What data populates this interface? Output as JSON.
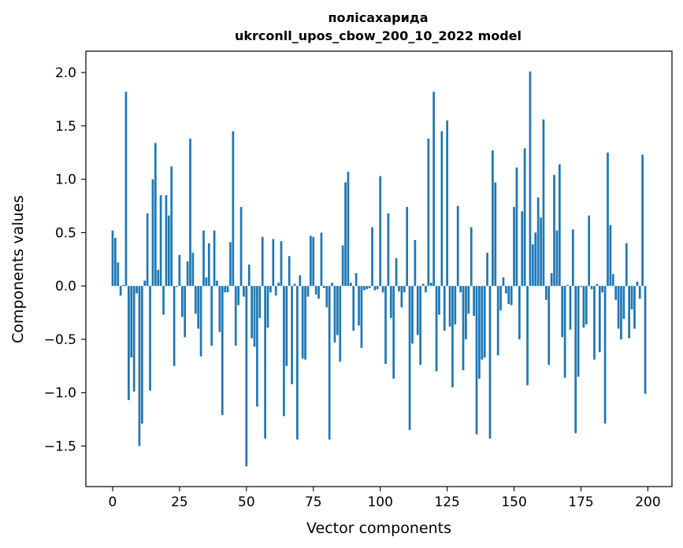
{
  "chart_data": {
    "type": "bar",
    "title": "полісахарида",
    "subtitle": "ukrconll_upos_cbow_200_10_2022 model",
    "xlabel": "Vector components",
    "ylabel": "Components values",
    "xlim": [
      -10,
      209
    ],
    "ylim": [
      -1.88,
      2.2
    ],
    "xticks": [
      0,
      25,
      50,
      75,
      100,
      125,
      150,
      175,
      200
    ],
    "yticks": [
      -1.5,
      -1.0,
      -0.5,
      0.0,
      0.5,
      1.0,
      1.5,
      2.0
    ],
    "ytick_labels": [
      "−1.5",
      "−1.0",
      "−0.5",
      "0.0",
      "0.5",
      "1.0",
      "1.5",
      "2.0"
    ],
    "grid": false,
    "bar_color": "#1f77b4",
    "x": [
      0,
      1,
      2,
      3,
      4,
      5,
      6,
      7,
      8,
      9,
      10,
      11,
      12,
      13,
      14,
      15,
      16,
      17,
      18,
      19,
      20,
      21,
      22,
      23,
      24,
      25,
      26,
      27,
      28,
      29,
      30,
      31,
      32,
      33,
      34,
      35,
      36,
      37,
      38,
      39,
      40,
      41,
      42,
      43,
      44,
      45,
      46,
      47,
      48,
      49,
      50,
      51,
      52,
      53,
      54,
      55,
      56,
      57,
      58,
      59,
      60,
      61,
      62,
      63,
      64,
      65,
      66,
      67,
      68,
      69,
      70,
      71,
      72,
      73,
      74,
      75,
      76,
      77,
      78,
      79,
      80,
      81,
      82,
      83,
      84,
      85,
      86,
      87,
      88,
      89,
      90,
      91,
      92,
      93,
      94,
      95,
      96,
      97,
      98,
      99,
      100,
      101,
      102,
      103,
      104,
      105,
      106,
      107,
      108,
      109,
      110,
      111,
      112,
      113,
      114,
      115,
      116,
      117,
      118,
      119,
      120,
      121,
      122,
      123,
      124,
      125,
      126,
      127,
      128,
      129,
      130,
      131,
      132,
      133,
      134,
      135,
      136,
      137,
      138,
      139,
      140,
      141,
      142,
      143,
      144,
      145,
      146,
      147,
      148,
      149,
      150,
      151,
      152,
      153,
      154,
      155,
      156,
      157,
      158,
      159,
      160,
      161,
      162,
      163,
      164,
      165,
      166,
      167,
      168,
      169,
      170,
      171,
      172,
      173,
      174,
      175,
      176,
      177,
      178,
      179,
      180,
      181,
      182,
      183,
      184,
      185,
      186,
      187,
      188,
      189,
      190,
      191,
      192,
      193,
      194,
      195,
      196,
      197,
      198,
      199
    ],
    "values": [
      0.52,
      0.45,
      0.22,
      -0.09,
      0.01,
      1.82,
      -1.07,
      -0.67,
      -0.99,
      -0.07,
      -1.5,
      -1.29,
      0.05,
      0.68,
      -0.98,
      1.0,
      1.34,
      0.15,
      0.85,
      -0.27,
      0.85,
      0.66,
      1.12,
      -0.75,
      -0.01,
      0.29,
      -0.29,
      -0.48,
      0.23,
      1.38,
      0.31,
      -0.26,
      -0.4,
      -0.66,
      0.52,
      0.08,
      0.4,
      -0.56,
      0.52,
      0.05,
      -0.43,
      -1.21,
      -0.06,
      -0.06,
      0.41,
      1.45,
      -0.56,
      -0.18,
      0.74,
      -0.1,
      -1.69,
      0.2,
      -0.49,
      -0.57,
      -1.13,
      -0.3,
      0.46,
      -1.43,
      -0.39,
      -0.06,
      0.44,
      -0.09,
      0.03,
      0.42,
      -1.22,
      -0.75,
      0.28,
      -0.92,
      0.02,
      -1.44,
      0.1,
      -0.68,
      -0.69,
      -0.1,
      0.47,
      0.46,
      -0.08,
      -0.12,
      0.5,
      -0.02,
      -0.2,
      -1.44,
      0.03,
      -0.53,
      -0.46,
      -0.71,
      0.38,
      0.97,
      1.07,
      0.03,
      -0.42,
      0.12,
      -0.37,
      -0.58,
      -0.04,
      -0.03,
      -0.02,
      0.55,
      -0.04,
      -0.03,
      1.03,
      -0.06,
      -0.73,
      0.68,
      -0.3,
      -0.87,
      0.26,
      -0.05,
      -0.2,
      -0.06,
      0.74,
      -1.35,
      -0.54,
      0.43,
      -0.46,
      -0.74,
      0.02,
      -0.06,
      1.38,
      0.03,
      1.82,
      -0.8,
      -0.27,
      1.45,
      -0.42,
      1.55,
      -0.38,
      -0.95,
      -0.36,
      0.75,
      -0.06,
      -0.79,
      -0.5,
      -0.26,
      0.55,
      -0.28,
      -1.39,
      -0.87,
      -0.69,
      -0.67,
      0.31,
      -1.43,
      1.27,
      0.97,
      -0.65,
      -0.23,
      0.08,
      -0.07,
      -0.17,
      -0.18,
      0.74,
      1.11,
      -0.5,
      0.7,
      1.29,
      -0.93,
      2.01,
      0.39,
      0.5,
      0.83,
      0.64,
      1.56,
      -0.13,
      -0.74,
      0.12,
      1.04,
      0.52,
      1.14,
      -0.48,
      -0.86,
      0.01,
      -0.41,
      0.53,
      -1.38,
      -0.85,
      -0.01,
      -0.39,
      -0.36,
      0.66,
      -0.03,
      -0.69,
      0.02,
      -0.62,
      -0.06,
      -1.29,
      1.25,
      0.57,
      0.11,
      -0.13,
      -0.4,
      -0.5,
      -0.31,
      0.4,
      -0.49,
      -0.22,
      -0.4,
      0.04,
      -0.12,
      1.23,
      -1.01
    ]
  }
}
